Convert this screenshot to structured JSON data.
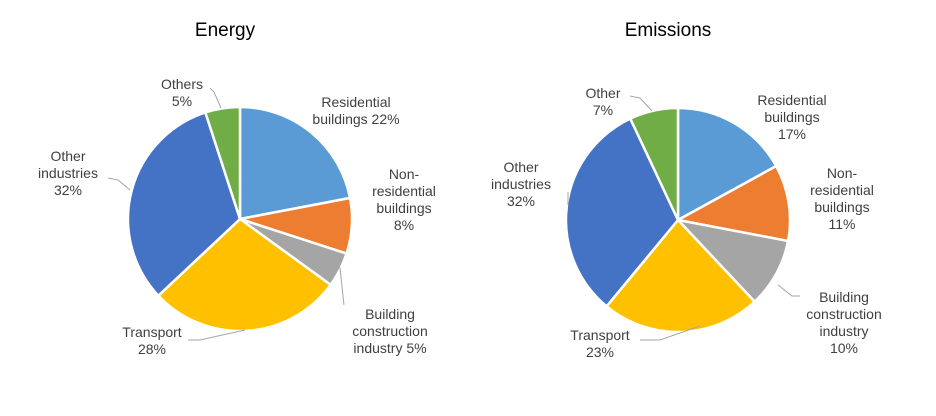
{
  "chart_data": [
    {
      "type": "pie",
      "title": "Energy",
      "slices": [
        {
          "label_lines": [
            "Residential",
            "buildings 22%"
          ],
          "value": 22,
          "color": "#5b9bd5"
        },
        {
          "label_lines": [
            "Non-",
            "residential",
            "buildings",
            "8%"
          ],
          "value": 8,
          "color": "#ed7d31"
        },
        {
          "label_lines": [
            "Building",
            "construction",
            "industry 5%"
          ],
          "value": 5,
          "color": "#a5a5a5"
        },
        {
          "label_lines": [
            "Transport",
            "28%"
          ],
          "value": 28,
          "color": "#ffc000"
        },
        {
          "label_lines": [
            "Other",
            "industries",
            "32%"
          ],
          "value": 32,
          "color": "#4472c4"
        },
        {
          "label_lines": [
            "Others",
            "5%"
          ],
          "value": 5,
          "color": "#70ad47"
        }
      ]
    },
    {
      "type": "pie",
      "title": "Emissions",
      "slices": [
        {
          "label_lines": [
            "Residential",
            "buildings",
            "17%"
          ],
          "value": 17,
          "color": "#5b9bd5"
        },
        {
          "label_lines": [
            "Non-",
            "residential",
            "buildings",
            "11%"
          ],
          "value": 11,
          "color": "#ed7d31"
        },
        {
          "label_lines": [
            "Building",
            "construction",
            "industry",
            "10%"
          ],
          "value": 10,
          "color": "#a5a5a5"
        },
        {
          "label_lines": [
            "Transport",
            "23%"
          ],
          "value": 23,
          "color": "#ffc000"
        },
        {
          "label_lines": [
            "Other",
            "industries",
            "32%"
          ],
          "value": 32,
          "color": "#4472c4"
        },
        {
          "label_lines": [
            "Other",
            "7%"
          ],
          "value": 7,
          "color": "#70ad47"
        }
      ]
    }
  ]
}
